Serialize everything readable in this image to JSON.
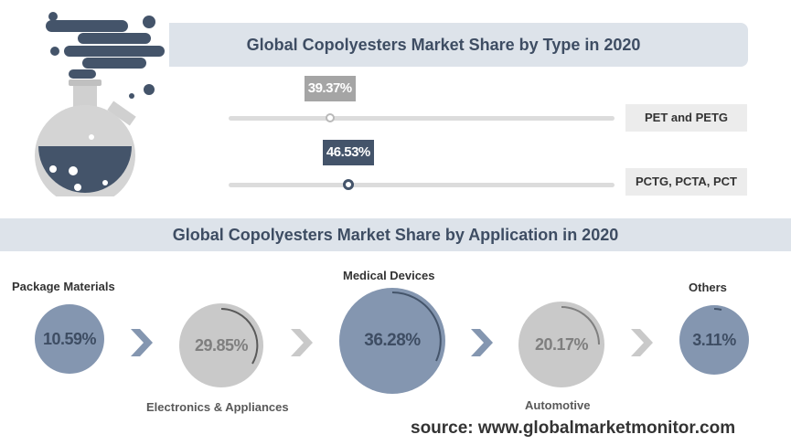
{
  "type_section": {
    "title": "Global Copolyesters Market Share by Type in 2020"
  },
  "application_section": {
    "title": "Global Copolyesters Market Share by Application in 2020"
  },
  "source": "source: www.globalmarketmonitor.com",
  "colors": {
    "navy": "#44546a",
    "blue": "#8496b0",
    "grey": "#a5a5a5",
    "banner": "#dde3ea"
  },
  "chart_data": [
    {
      "type": "bar",
      "title": "Global Copolyesters Market Share by Type in 2020",
      "categories": [
        "PET and PETG",
        "PCTG, PCTA, PCT"
      ],
      "values": [
        39.37,
        46.53
      ],
      "labels": [
        "39.37%",
        "46.53%"
      ],
      "ylim": [
        0,
        100
      ]
    },
    {
      "type": "pie",
      "title": "Global Copolyesters Market Share by Application in 2020",
      "categories": [
        "Package Materials",
        "Electronics & Appliances",
        "Medical Devices",
        "Automotive",
        "Others"
      ],
      "values": [
        10.59,
        29.85,
        36.28,
        20.17,
        3.11
      ],
      "labels": [
        "10.59%",
        "29.85%",
        "36.28%",
        "20.17%",
        "3.11%"
      ]
    }
  ]
}
